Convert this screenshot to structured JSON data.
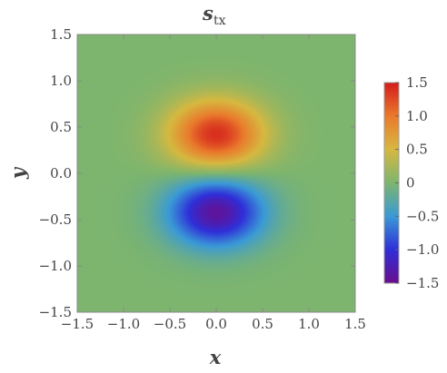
{
  "chart_data": {
    "type": "heatmap",
    "title": {
      "main": "s",
      "sub": "tx"
    },
    "xlabel": "x",
    "ylabel": "y",
    "xlim": [
      -1.5,
      1.5
    ],
    "ylim": [
      -1.5,
      1.5
    ],
    "x_ticks": [
      "−1.5",
      "−1.0",
      "−0.5",
      "0.0",
      "0.5",
      "1.0",
      "1.5"
    ],
    "y_ticks": [
      "−1.5",
      "−1.0",
      "−0.5",
      "0.0",
      "0.5",
      "1.0",
      "1.5"
    ],
    "x_tick_values": [
      -1.5,
      -1.0,
      -0.5,
      0.0,
      0.5,
      1.0,
      1.5
    ],
    "y_tick_values": [
      -1.5,
      -1.0,
      -0.5,
      0.0,
      0.5,
      1.0,
      1.5
    ],
    "colorbar": {
      "range": [
        -1.5,
        1.5
      ],
      "tick_labels": [
        "1.5",
        "1.0",
        "0.5",
        "0",
        "−0.5",
        "−1.0",
        "−1.5"
      ],
      "tick_values": [
        1.5,
        1.0,
        0.5,
        0.0,
        -0.5,
        -1.0,
        -1.5
      ],
      "colors": [
        {
          "value": -1.5,
          "color": "#6a0d8d"
        },
        {
          "value": -1.0,
          "color": "#2f2fd8"
        },
        {
          "value": -0.5,
          "color": "#3a9ad6"
        },
        {
          "value": 0.0,
          "color": "#7db56e"
        },
        {
          "value": 0.5,
          "color": "#d6b840"
        },
        {
          "value": 1.0,
          "color": "#ea7a2c"
        },
        {
          "value": 1.5,
          "color": "#d31b1b"
        }
      ]
    },
    "features": [
      {
        "label": "positive lobe",
        "x": 0.0,
        "y": 0.42,
        "value": 1.4
      },
      {
        "label": "negative lobe",
        "x": 0.0,
        "y": -0.42,
        "value": -1.4
      }
    ]
  }
}
